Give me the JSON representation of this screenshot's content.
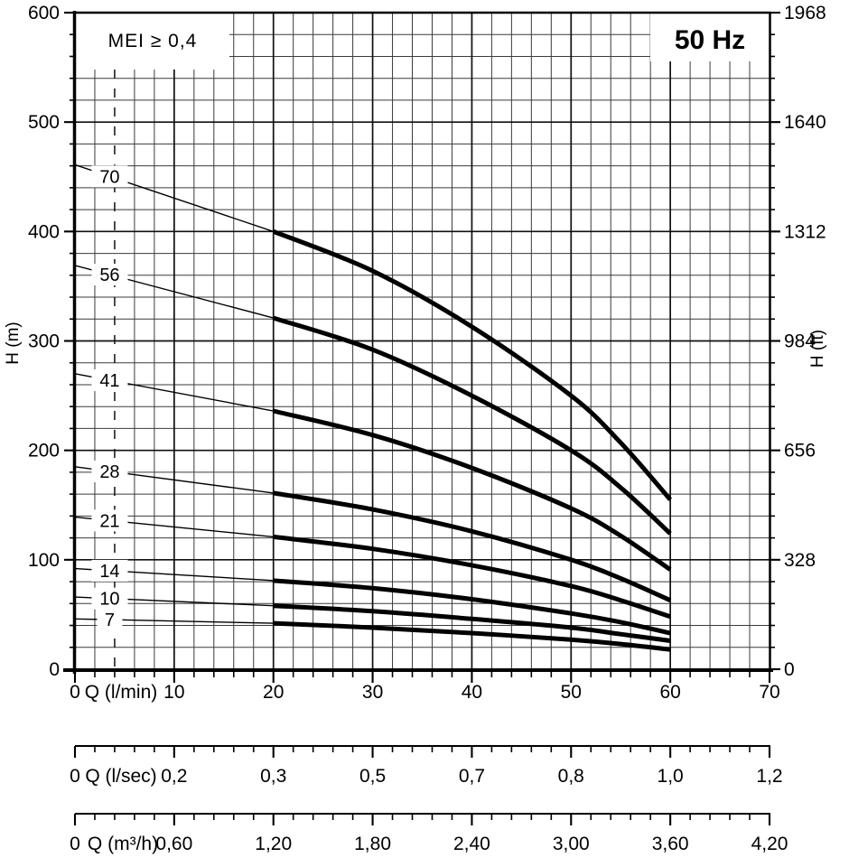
{
  "frequency_label": "50 Hz",
  "chart_data": {
    "type": "line",
    "title": "50 Hz",
    "annotation": "MEI ≥ 0,4",
    "x_min": 0,
    "x_max": 70,
    "x_major": 10,
    "x_minor": 2,
    "label_q": 3.5,
    "min_flow_line": {
      "q": 4,
      "style": "dashed"
    },
    "y_axis_left": {
      "title": "H (m)",
      "min": 0,
      "max": 600,
      "major": 100,
      "minor": 20,
      "labels": [
        "0",
        "100",
        "200",
        "300",
        "400",
        "500",
        "600"
      ]
    },
    "y_axis_right": {
      "title": "H (ft)",
      "labels": [
        "0",
        "328",
        "656",
        "984",
        "1312",
        "1640",
        "1968"
      ]
    },
    "x_axes": [
      {
        "unit": "Q (l/min)",
        "labels": [
          "0",
          "10",
          "20",
          "30",
          "40",
          "50",
          "60",
          "70"
        ]
      },
      {
        "unit": "Q (l/sec)",
        "labels": [
          "0",
          "0,2",
          "0,3",
          "0,5",
          "0,7",
          "0,8",
          "1,0",
          "1,2"
        ]
      },
      {
        "unit": "Q (m³/h)",
        "labels": [
          "0",
          "0,60",
          "1,20",
          "1,80",
          "2,40",
          "3,00",
          "3,60",
          "4,20"
        ]
      }
    ],
    "series": [
      {
        "label": "70",
        "points": [
          [
            0,
            461
          ],
          [
            20,
            400
          ],
          [
            30,
            364
          ],
          [
            40,
            313
          ],
          [
            50,
            250
          ],
          [
            55,
            207
          ],
          [
            60,
            155
          ]
        ]
      },
      {
        "label": "56",
        "points": [
          [
            0,
            369
          ],
          [
            20,
            321
          ],
          [
            30,
            292
          ],
          [
            40,
            250
          ],
          [
            50,
            200
          ],
          [
            55,
            166
          ],
          [
            60,
            124
          ]
        ]
      },
      {
        "label": "41",
        "points": [
          [
            0,
            270
          ],
          [
            20,
            236
          ],
          [
            30,
            214
          ],
          [
            40,
            184
          ],
          [
            50,
            147
          ],
          [
            55,
            122
          ],
          [
            60,
            91
          ]
        ]
      },
      {
        "label": "28",
        "points": [
          [
            0,
            185
          ],
          [
            20,
            161
          ],
          [
            30,
            146
          ],
          [
            40,
            126
          ],
          [
            50,
            100
          ],
          [
            55,
            83
          ],
          [
            60,
            63
          ]
        ]
      },
      {
        "label": "21",
        "points": [
          [
            0,
            139
          ],
          [
            20,
            121
          ],
          [
            30,
            110
          ],
          [
            40,
            95
          ],
          [
            50,
            76
          ],
          [
            55,
            63
          ],
          [
            60,
            48
          ]
        ]
      },
      {
        "label": "14",
        "points": [
          [
            0,
            92
          ],
          [
            20,
            81
          ],
          [
            30,
            74
          ],
          [
            40,
            64
          ],
          [
            50,
            51
          ],
          [
            55,
            43
          ],
          [
            60,
            33
          ]
        ]
      },
      {
        "label": "10",
        "points": [
          [
            0,
            66
          ],
          [
            20,
            58
          ],
          [
            30,
            53
          ],
          [
            40,
            46
          ],
          [
            50,
            38
          ],
          [
            55,
            32
          ],
          [
            60,
            26
          ]
        ]
      },
      {
        "label": "7",
        "points": [
          [
            0,
            46
          ],
          [
            20,
            42
          ],
          [
            30,
            38
          ],
          [
            40,
            33
          ],
          [
            50,
            27
          ],
          [
            55,
            23
          ],
          [
            60,
            18
          ]
        ]
      }
    ]
  }
}
